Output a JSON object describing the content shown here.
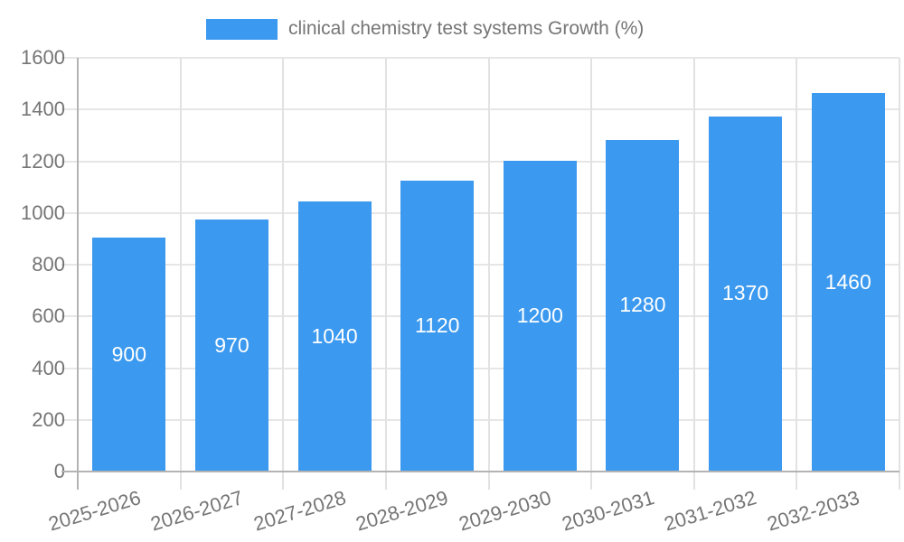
{
  "legend": {
    "label": "clinical chemistry test systems Growth (%)"
  },
  "colors": {
    "bar": "#3b99ef",
    "bar_label": "#ffffff",
    "axis_label": "#757575",
    "grid": "#e6e6e6",
    "axis_line": "#b3b3b3",
    "background": "#ffffff"
  },
  "chart_data": {
    "type": "bar",
    "title": "",
    "xlabel": "",
    "ylabel": "",
    "categories": [
      "2025-2026",
      "2026-2027",
      "2027-2028",
      "2028-2029",
      "2029-2030",
      "2030-2031",
      "2031-2032",
      "2032-2033"
    ],
    "series": [
      {
        "name": "clinical chemistry test systems Growth (%)",
        "values": [
          900,
          970,
          1040,
          1120,
          1200,
          1280,
          1370,
          1460
        ]
      }
    ],
    "bar_labels": [
      "900",
      "970",
      "1040",
      "1120",
      "1200",
      "1280",
      "1370",
      "1460"
    ],
    "ylim": [
      0,
      1600
    ],
    "yticks": [
      0,
      200,
      400,
      600,
      800,
      1000,
      1200,
      1400,
      1600
    ],
    "grid": true,
    "legend_position": "top"
  }
}
